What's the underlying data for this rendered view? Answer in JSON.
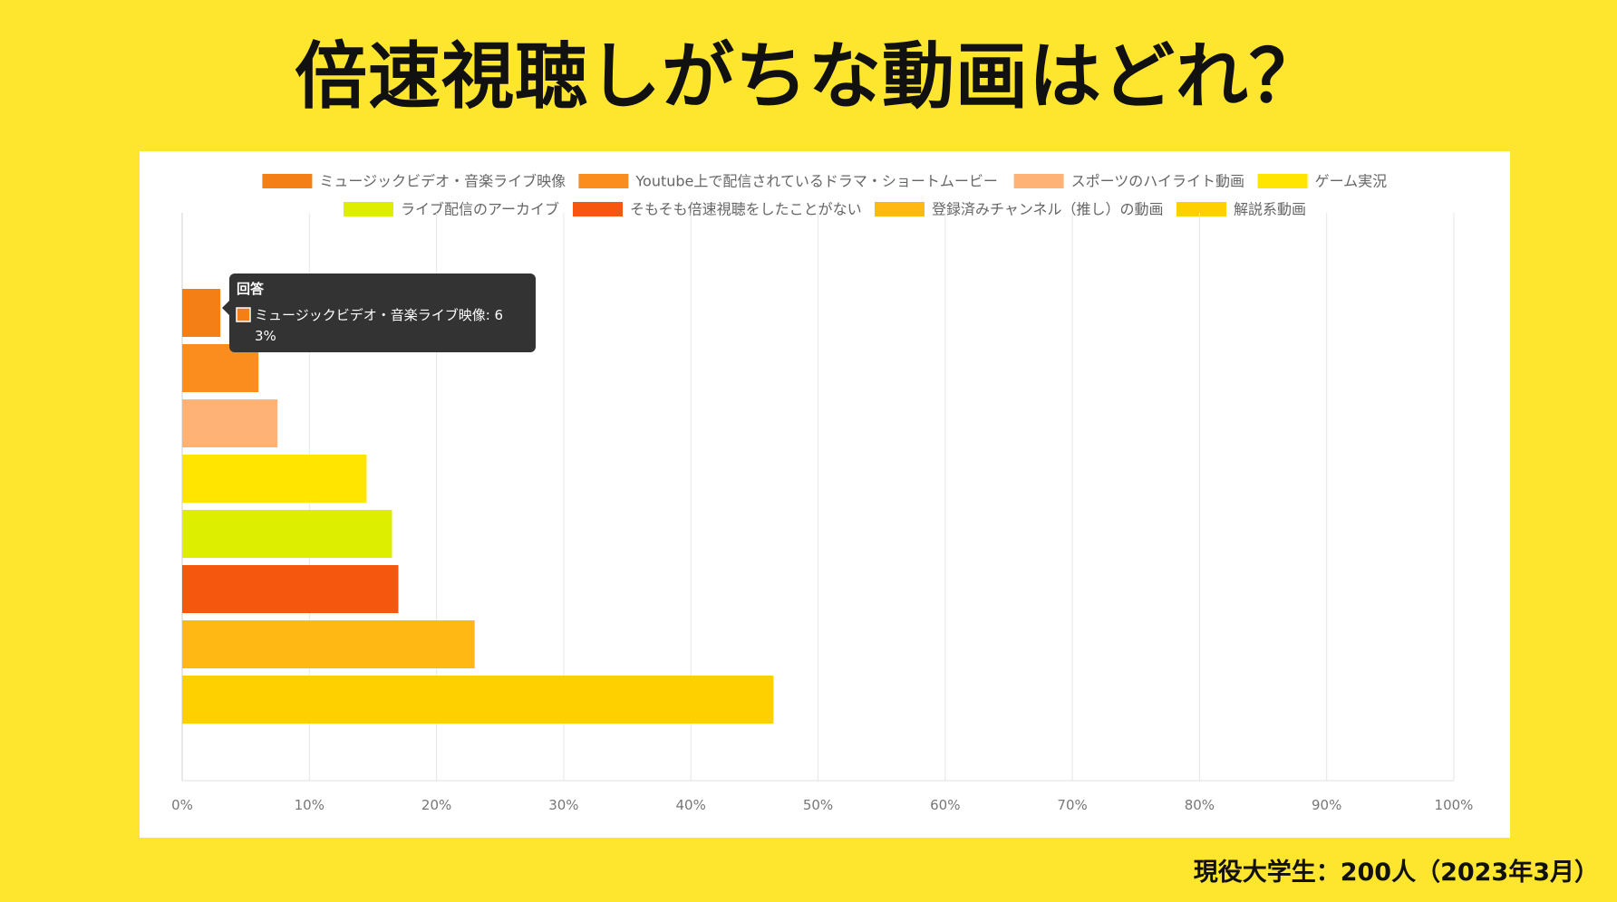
{
  "title": "倍速視聴しがちな動画はどれ？",
  "footnote": "現役大学生：200人（2023年3月）",
  "chart_data": {
    "type": "bar",
    "orientation": "horizontal",
    "title": "",
    "xlabel": "",
    "ylabel": "",
    "xlim": [
      0,
      100
    ],
    "x_ticks": [
      "0%",
      "10%",
      "20%",
      "30%",
      "40%",
      "50%",
      "60%",
      "70%",
      "80%",
      "90%",
      "100%"
    ],
    "grid": true,
    "legend_position": "top",
    "series": [
      {
        "name": "ミュージックビデオ・音楽ライブ映像",
        "value": 3,
        "color": "#F57F17"
      },
      {
        "name": "Youtube上で配信されているドラマ・ショートムービー",
        "value": 6,
        "color": "#FB8C1E"
      },
      {
        "name": "スポーツのハイライト動画",
        "value": 7.5,
        "color": "#FFB276"
      },
      {
        "name": "ゲーム実況",
        "value": 14.5,
        "color": "#FFE500"
      },
      {
        "name": "ライブ配信のアーカイブ",
        "value": 16.5,
        "color": "#DDEE00"
      },
      {
        "name": "そもそも倍速視聴をしたことがない",
        "value": 17,
        "color": "#F5570E"
      },
      {
        "name": "登録済みチャンネル（推し）の動画",
        "value": 23,
        "color": "#FFB814"
      },
      {
        "name": "解説系動画",
        "value": 46.5,
        "color": "#FFD000"
      }
    ],
    "tooltip": {
      "title": "回答",
      "line1": "ミュージックビデオ・音楽ライブ映像: 6",
      "line2": "3%"
    }
  }
}
